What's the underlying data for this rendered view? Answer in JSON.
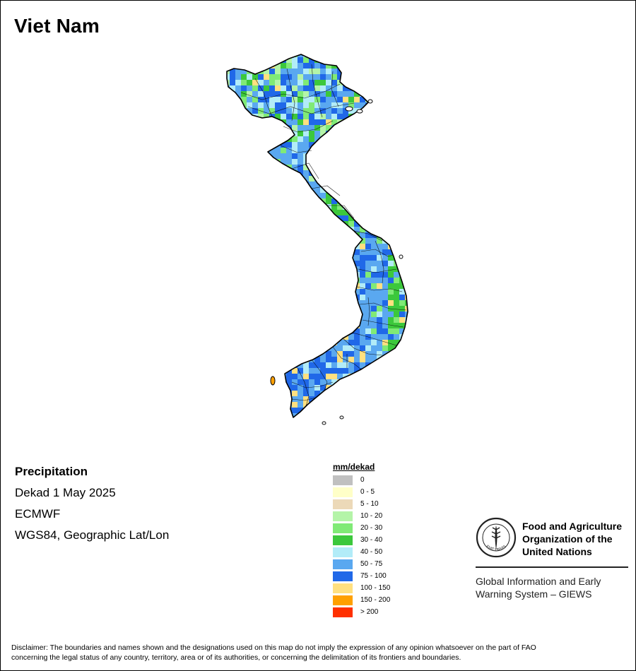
{
  "map": {
    "title": "Viet Nam",
    "variable": "Precipitation",
    "period": "Dekad 1 May 2025",
    "source": "ECMWF",
    "projection": "WGS84, Geographic Lat/Lon"
  },
  "legend": {
    "title": "mm/dekad",
    "items": [
      {
        "label": "0",
        "color": "#c0c0c0"
      },
      {
        "label": "0 - 5",
        "color": "#ffffc8"
      },
      {
        "label": "5 - 10",
        "color": "#ecd9b8"
      },
      {
        "label": "10 - 20",
        "color": "#b4f4a8"
      },
      {
        "label": "20 - 30",
        "color": "#80ea76"
      },
      {
        "label": "30 - 40",
        "color": "#3cc83c"
      },
      {
        "label": "40 - 50",
        "color": "#b2ecf8"
      },
      {
        "label": "50 - 75",
        "color": "#5aa8f0"
      },
      {
        "label": "75 - 100",
        "color": "#2068e8"
      },
      {
        "label": "100 - 150",
        "color": "#ffe080"
      },
      {
        "label": "150 - 200",
        "color": "#ffa000"
      },
      {
        "label": "> 200",
        "color": "#ff3000"
      }
    ]
  },
  "logo": {
    "org_line1": "Food and Agriculture",
    "org_line2": "Organization of the",
    "org_line3": "United Nations",
    "giews_line1": "Global Information and Early",
    "giews_line2": "Warning System – GIEWS",
    "emblem_text": "FAO",
    "emblem_motto": "FIAT PANIS"
  },
  "disclaimer": {
    "line1": "Disclaimer: The boundaries and names shown and the designations used on this map do not imply the expression of any opinion whatsoever on the part of FAO",
    "line2": "concerning the legal status of any country, territory, area or of its authorities, or concerning the delimitation of its frontiers and boundaries."
  }
}
